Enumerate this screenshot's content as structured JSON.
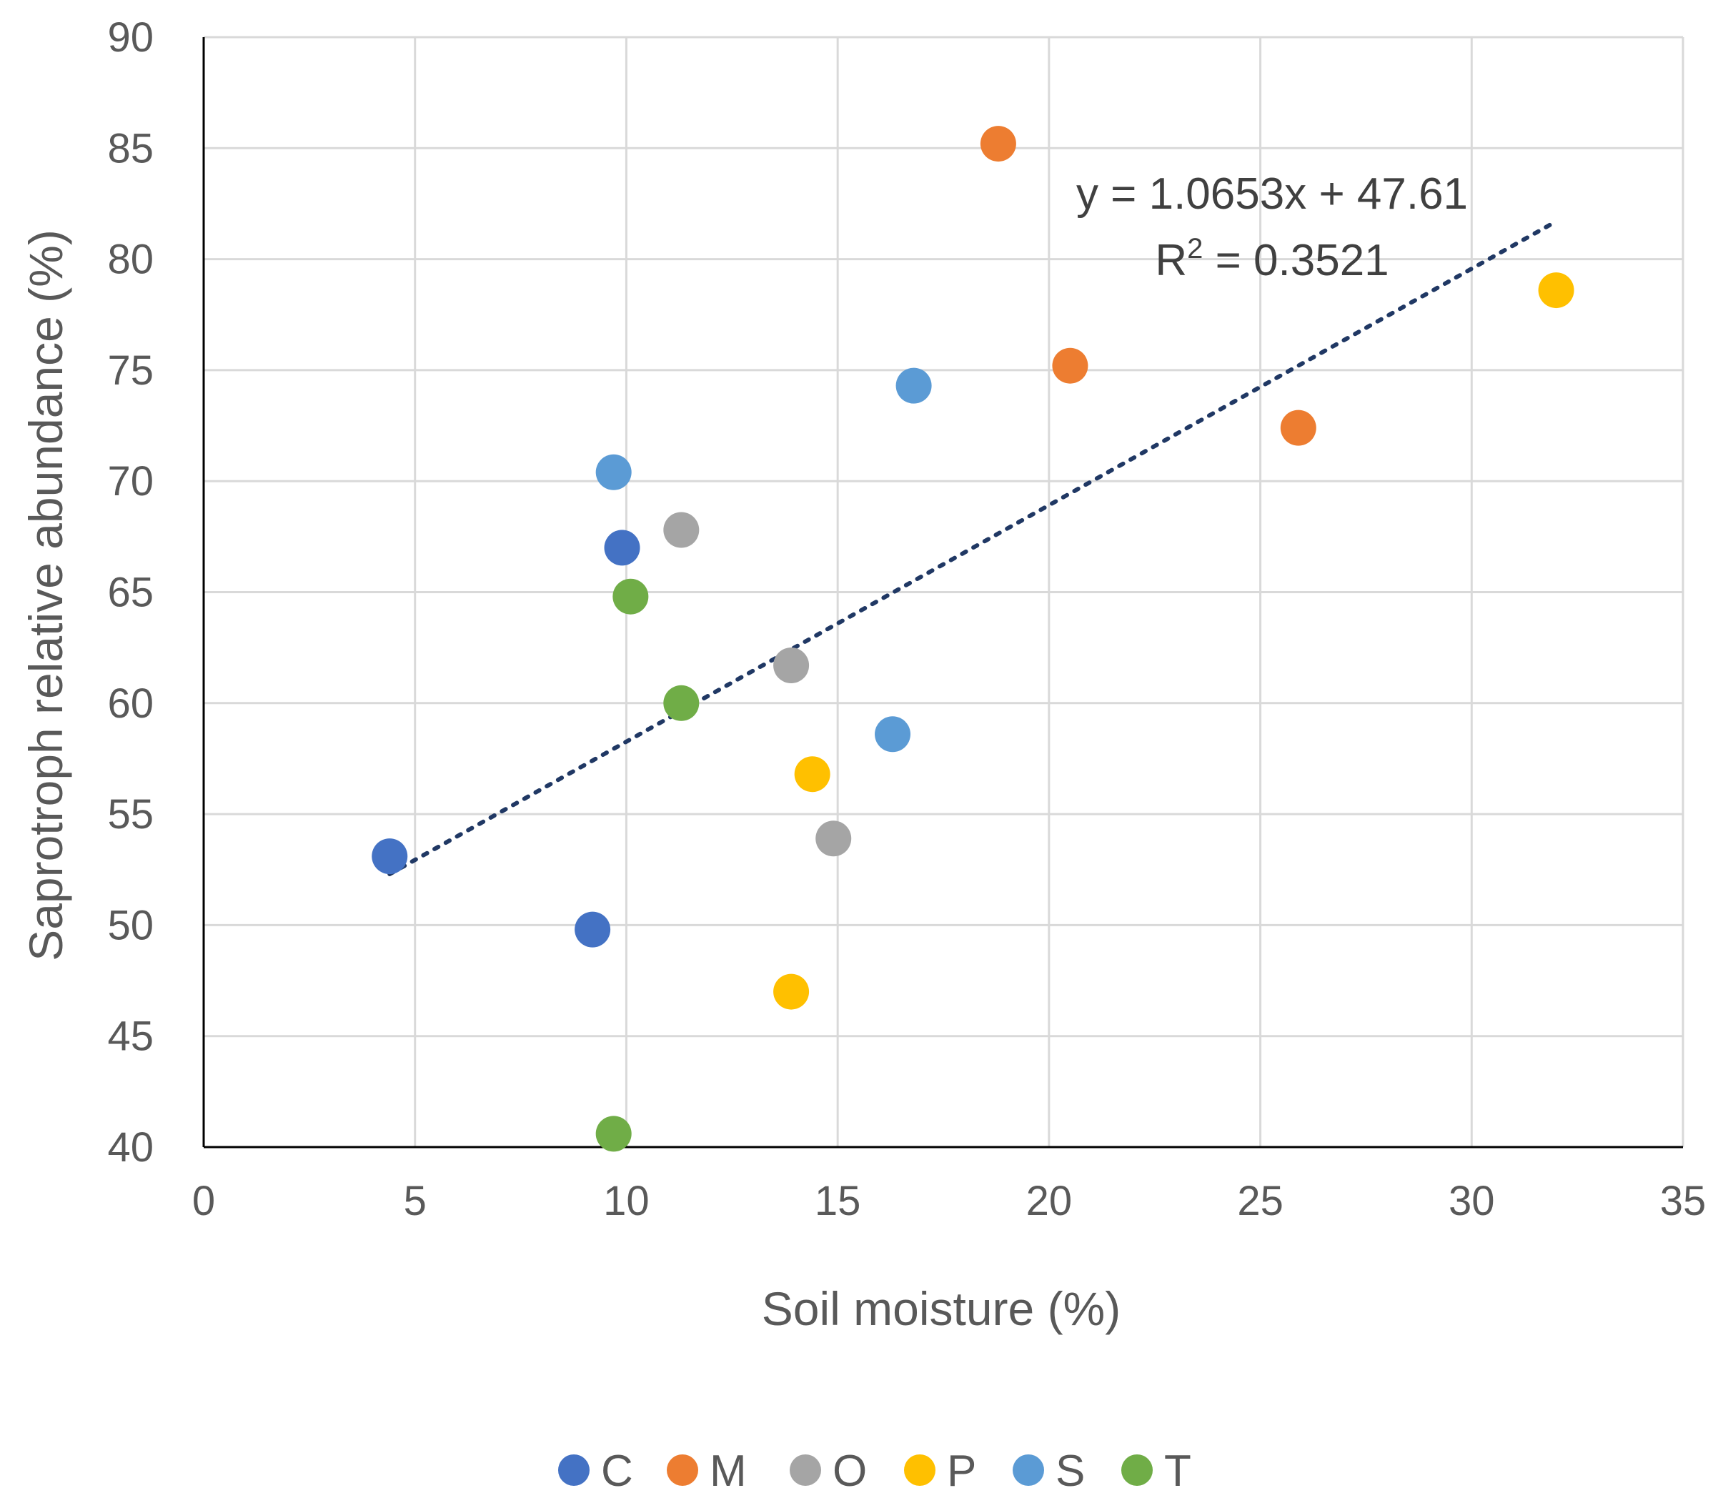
{
  "chart_data": {
    "type": "scatter",
    "title": "",
    "xlabel": "Soil moisture (%)",
    "ylabel": "Saprotroph relative abundance (%)",
    "xlim": [
      0,
      35
    ],
    "ylim": [
      40,
      90
    ],
    "xticks": [
      0,
      5,
      10,
      15,
      20,
      25,
      30,
      35
    ],
    "yticks": [
      40,
      45,
      50,
      55,
      60,
      65,
      70,
      75,
      80,
      85,
      90
    ],
    "grid": true,
    "legend_position": "bottom",
    "series": [
      {
        "name": "C",
        "color": "#4472C4",
        "points": [
          [
            4.4,
            53.1
          ],
          [
            9.2,
            49.8
          ],
          [
            9.9,
            67.0
          ]
        ]
      },
      {
        "name": "M",
        "color": "#ED7D31",
        "points": [
          [
            18.8,
            85.2
          ],
          [
            20.5,
            75.2
          ],
          [
            25.9,
            72.4
          ]
        ]
      },
      {
        "name": "O",
        "color": "#A5A5A5",
        "points": [
          [
            11.3,
            67.8
          ],
          [
            13.9,
            61.7
          ],
          [
            14.9,
            53.9
          ]
        ]
      },
      {
        "name": "P",
        "color": "#FFC000",
        "points": [
          [
            13.9,
            47.0
          ],
          [
            14.4,
            56.8
          ],
          [
            32.0,
            78.6
          ]
        ]
      },
      {
        "name": "S",
        "color": "#5B9BD5",
        "points": [
          [
            9.7,
            70.4
          ],
          [
            16.3,
            58.6
          ],
          [
            16.8,
            74.3
          ]
        ]
      },
      {
        "name": "T",
        "color": "#70AD47",
        "points": [
          [
            9.7,
            40.6
          ],
          [
            10.1,
            64.8
          ],
          [
            11.3,
            60.0
          ]
        ]
      }
    ],
    "trendline": {
      "type": "linear",
      "slope": 1.0653,
      "intercept": 47.61,
      "x_range": [
        4.4,
        32.0
      ],
      "color": "#203864",
      "equation": "y = 1.0653x + 47.61",
      "r2_prefix": "R",
      "r2_sup": "2",
      "r2_rest": " = 0.3521"
    }
  }
}
